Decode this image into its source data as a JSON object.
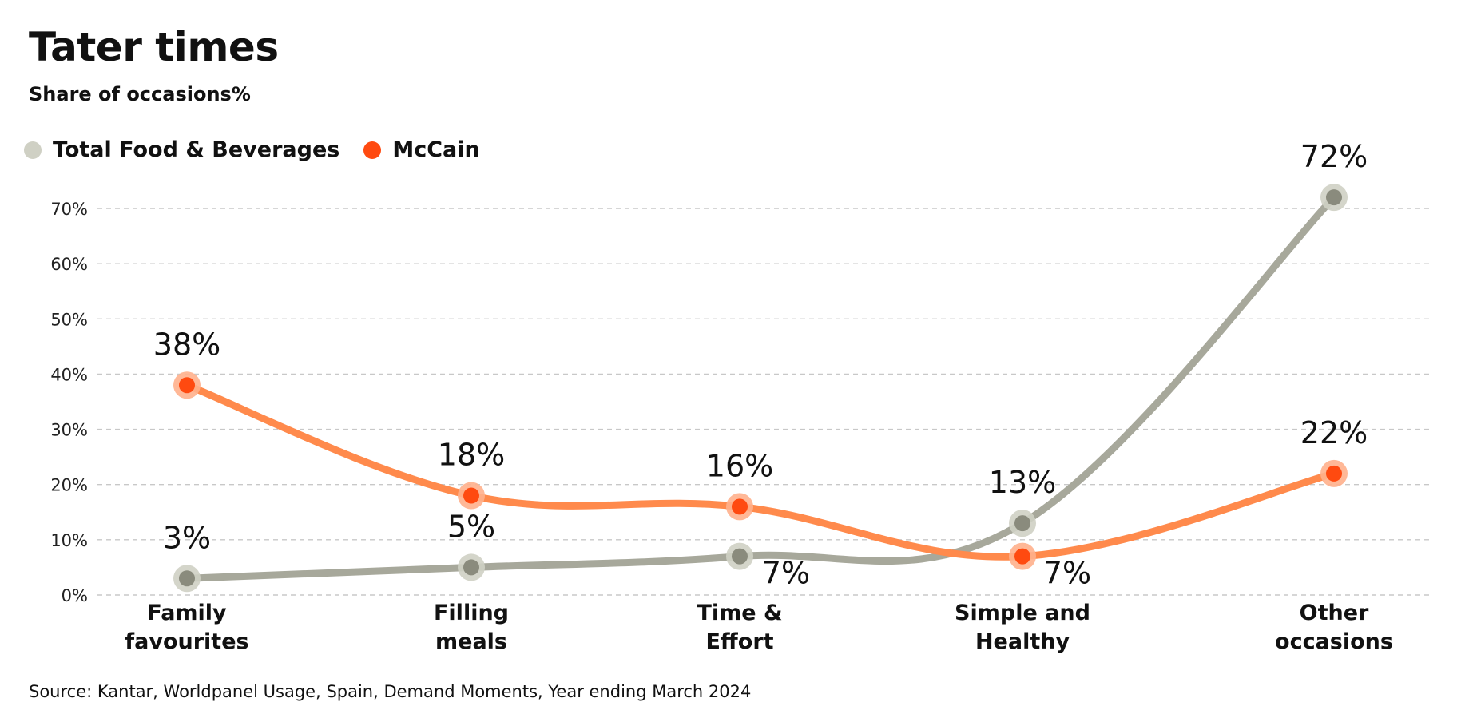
{
  "header": {
    "title": "Tater times",
    "subtitle": "Share of occasions%"
  },
  "legend": [
    {
      "label": "Total Food & Beverages",
      "color": "#cfd0c4"
    },
    {
      "label": "McCain",
      "color": "#ff4a10"
    }
  ],
  "source": "Source: Kantar, Worldpanel Usage, Spain, Demand Moments, Year ending March 2024",
  "chart_data": {
    "type": "line",
    "title": "Tater times",
    "subtitle": "Share of occasions%",
    "categories": [
      [
        "Family",
        "favourites"
      ],
      [
        "Filling",
        "meals"
      ],
      [
        "Time &",
        "Effort"
      ],
      [
        "Simple and",
        "Healthy"
      ],
      [
        "Other",
        "occasions"
      ]
    ],
    "ylim": [
      0,
      70
    ],
    "yticks": [
      0,
      10,
      20,
      30,
      40,
      50,
      60,
      70
    ],
    "ytick_labels": [
      "0%",
      "10%",
      "20%",
      "30%",
      "40%",
      "50%",
      "60%",
      "70%"
    ],
    "grid": "horizontal dashed",
    "legend_position": "top-left",
    "series": [
      {
        "name": "Total Food & Beverages",
        "values": [
          3,
          5,
          7,
          13,
          72
        ],
        "labels": [
          "3%",
          "5%",
          "7%",
          "13%",
          "72%"
        ],
        "line_color": "#a7a89b",
        "marker_color": "#8a8b7d",
        "halo_color": "#cfd0c4"
      },
      {
        "name": "McCain",
        "values": [
          38,
          18,
          16,
          7,
          22
        ],
        "labels": [
          "38%",
          "18%",
          "16%",
          "7%",
          "22%"
        ],
        "line_color": "#ff8a4c",
        "marker_color": "#ff4a10",
        "halo_color": "#ffb08c"
      }
    ]
  }
}
